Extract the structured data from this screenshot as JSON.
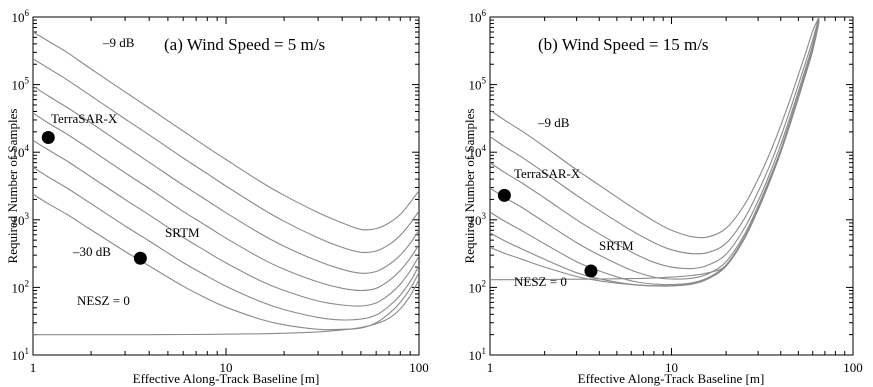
{
  "chart_data": [
    {
      "type": "line",
      "panel": "a",
      "title": "(a) Wind Speed = 5 m/s",
      "xlabel": "Effective Along-Track Baseline [m]",
      "ylabel": "Required Number of Samples",
      "xscale": "log",
      "yscale": "log",
      "xlim": [
        1,
        100
      ],
      "ylim": [
        10,
        1000000
      ],
      "x_ticks": [
        "1",
        "10",
        "100"
      ],
      "y_ticks": [
        "10",
        "100",
        "1000",
        "10000",
        "100000",
        "1000000"
      ],
      "y_tick_labels": [
        {
          "base": "10",
          "exp": "1"
        },
        {
          "base": "10",
          "exp": "2"
        },
        {
          "base": "10",
          "exp": "3"
        },
        {
          "base": "10",
          "exp": "4"
        },
        {
          "base": "10",
          "exp": "5"
        },
        {
          "base": "10",
          "exp": "6"
        }
      ],
      "x": [
        1,
        1.2,
        1.5,
        2,
        3,
        4,
        6,
        8,
        10,
        15,
        20,
        30,
        40,
        50,
        60,
        70,
        80,
        90,
        100
      ],
      "series": [
        {
          "values": [
            600000,
            440000,
            300000,
            170000,
            78000,
            45000,
            20500,
            11800,
            7800,
            3700,
            2300,
            1280,
            900,
            720,
            740,
            900,
            1200,
            1800,
            2700
          ]
        },
        {
          "values": [
            240000,
            175000,
            118000,
            68000,
            31000,
            18000,
            8200,
            4800,
            3150,
            1520,
            950,
            540,
            390,
            330,
            345,
            430,
            590,
            880,
            1350
          ]
        },
        {
          "values": [
            95000,
            68000,
            46000,
            27000,
            12300,
            7100,
            3250,
            1920,
            1270,
            630,
            405,
            245,
            185,
            162,
            172,
            218,
            300,
            450,
            700
          ]
        },
        {
          "values": [
            38000,
            27000,
            18500,
            10800,
            4950,
            2900,
            1330,
            800,
            535,
            275,
            185,
            120,
            97,
            90,
            97,
            126,
            178,
            270,
            430
          ]
        },
        {
          "values": [
            15000,
            10800,
            7400,
            4300,
            2000,
            1180,
            550,
            335,
            230,
            126,
            90,
            63,
            55,
            53,
            59,
            78,
            112,
            175,
            290
          ]
        },
        {
          "values": [
            6000,
            4300,
            2950,
            1730,
            810,
            485,
            233,
            146,
            104,
            62,
            47,
            36,
            33,
            34,
            39,
            53,
            77,
            122,
            210
          ]
        },
        {
          "values": [
            2400,
            1730,
            1200,
            710,
            340,
            208,
            104,
            68,
            51,
            34,
            28,
            24,
            24,
            25,
            30,
            41,
            60,
            96,
            165
          ]
        },
        {
          "values": [
            20,
            20,
            20,
            20,
            20,
            20,
            20.1,
            20.2,
            20.3,
            20.6,
            21,
            22,
            23.5,
            25.5,
            29,
            35,
            48,
            75,
            130
          ]
        }
      ],
      "points": [
        {
          "label": "TerraSAR-X",
          "x": 1.2,
          "y": 16500
        },
        {
          "label": "SRTM",
          "x": 3.6,
          "y": 270
        }
      ],
      "annotations": [
        {
          "text": "–9 dB"
        },
        {
          "text": "–30 dB"
        },
        {
          "text": "NESZ = 0"
        }
      ],
      "grid": false
    },
    {
      "type": "line",
      "panel": "b",
      "title": "(b) Wind Speed = 15 m/s",
      "xlabel": "Effective Along-Track Baseline [m]",
      "ylabel": "Required Number of Samples",
      "xscale": "log",
      "yscale": "log",
      "xlim": [
        1,
        100
      ],
      "ylim": [
        10,
        1000000
      ],
      "x_ticks": [
        "1",
        "10",
        "100"
      ],
      "y_ticks": [
        "10",
        "100",
        "1000",
        "10000",
        "100000",
        "1000000"
      ],
      "y_tick_labels": [
        {
          "base": "10",
          "exp": "1"
        },
        {
          "base": "10",
          "exp": "2"
        },
        {
          "base": "10",
          "exp": "3"
        },
        {
          "base": "10",
          "exp": "4"
        },
        {
          "base": "10",
          "exp": "5"
        },
        {
          "base": "10",
          "exp": "6"
        }
      ],
      "x": [
        1,
        1.2,
        1.5,
        2,
        3,
        4,
        6,
        8,
        10,
        13,
        16,
        20,
        25,
        30,
        35,
        40,
        45,
        50,
        55,
        60,
        65
      ],
      "series": [
        {
          "values": [
            42000,
            30000,
            20500,
            12000,
            5500,
            3250,
            1560,
            960,
            700,
            560,
            560,
            750,
            1600,
            4000,
            10000,
            25000,
            60000,
            140000,
            300000,
            620000,
            1000000
          ]
        },
        {
          "values": [
            17000,
            12200,
            8400,
            4950,
            2300,
            1380,
            700,
            460,
            360,
            315,
            330,
            450,
            1000,
            2600,
            6600,
            17000,
            42000,
            100000,
            220000,
            460000,
            1000000
          ]
        },
        {
          "values": [
            7000,
            5050,
            3500,
            2100,
            1000,
            620,
            335,
            235,
            200,
            190,
            215,
            310,
            720,
            1900,
            5000,
            13000,
            33000,
            80000,
            180000,
            390000,
            950000
          ]
        },
        {
          "values": [
            2950,
            2150,
            1520,
            920,
            460,
            300,
            180,
            142,
            133,
            137,
            160,
            240,
            580,
            1600,
            4300,
            11000,
            29000,
            70000,
            160000,
            350000,
            900000
          ]
        },
        {
          "values": [
            1300,
            960,
            690,
            440,
            240,
            175,
            125,
            112,
            110,
            117,
            140,
            215,
            530,
            1480,
            4000,
            10500,
            27000,
            66000,
            150000,
            330000,
            860000
          ]
        },
        {
          "values": [
            640,
            490,
            370,
            260,
            165,
            134,
            111,
            106,
            106,
            113,
            136,
            208,
            515,
            1440,
            3900,
            10200,
            26500,
            65000,
            148000,
            325000,
            850000
          ]
        },
        {
          "values": [
            390,
            320,
            260,
            200,
            145,
            125,
            110,
            105,
            105,
            112,
            135,
            205,
            510,
            1420,
            3850,
            10100,
            26000,
            64000,
            146000,
            322000,
            845000
          ]
        },
        {
          "values": [
            130,
            130,
            130,
            131,
            132,
            133,
            135,
            138,
            142,
            150,
            165,
            210,
            500,
            1400,
            3800,
            10000,
            25800,
            63500,
            145000,
            320000,
            840000
          ]
        }
      ],
      "points": [
        {
          "label": "TerraSAR-X",
          "x": 1.2,
          "y": 2300
        },
        {
          "label": "SRTM",
          "x": 3.6,
          "y": 175
        }
      ],
      "annotations": [
        {
          "text": "–9 dB"
        },
        {
          "text": "NESZ = 0"
        }
      ],
      "grid": false
    }
  ]
}
